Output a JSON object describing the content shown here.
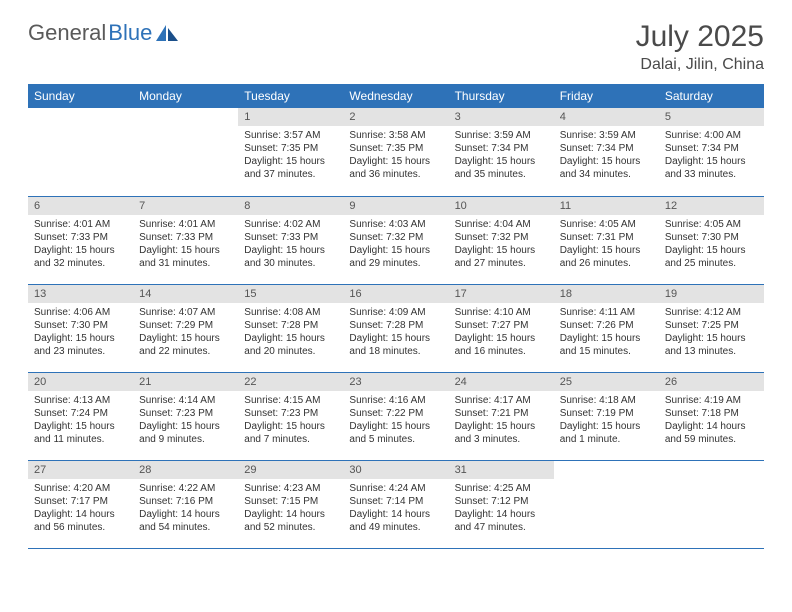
{
  "logo": {
    "text1": "General",
    "text2": "Blue"
  },
  "title": {
    "month": "July 2025",
    "location": "Dalai, Jilin, China"
  },
  "colors": {
    "header_blue": "#2e72b8",
    "daynum_bg": "#e3e3e3",
    "text": "#333333",
    "logo_gray": "#5a5a5a"
  },
  "weekdays": [
    "Sunday",
    "Monday",
    "Tuesday",
    "Wednesday",
    "Thursday",
    "Friday",
    "Saturday"
  ],
  "weeks": [
    [
      null,
      null,
      {
        "n": "1",
        "sunrise": "3:57 AM",
        "sunset": "7:35 PM",
        "daylight": "15 hours and 37 minutes."
      },
      {
        "n": "2",
        "sunrise": "3:58 AM",
        "sunset": "7:35 PM",
        "daylight": "15 hours and 36 minutes."
      },
      {
        "n": "3",
        "sunrise": "3:59 AM",
        "sunset": "7:34 PM",
        "daylight": "15 hours and 35 minutes."
      },
      {
        "n": "4",
        "sunrise": "3:59 AM",
        "sunset": "7:34 PM",
        "daylight": "15 hours and 34 minutes."
      },
      {
        "n": "5",
        "sunrise": "4:00 AM",
        "sunset": "7:34 PM",
        "daylight": "15 hours and 33 minutes."
      }
    ],
    [
      {
        "n": "6",
        "sunrise": "4:01 AM",
        "sunset": "7:33 PM",
        "daylight": "15 hours and 32 minutes."
      },
      {
        "n": "7",
        "sunrise": "4:01 AM",
        "sunset": "7:33 PM",
        "daylight": "15 hours and 31 minutes."
      },
      {
        "n": "8",
        "sunrise": "4:02 AM",
        "sunset": "7:33 PM",
        "daylight": "15 hours and 30 minutes."
      },
      {
        "n": "9",
        "sunrise": "4:03 AM",
        "sunset": "7:32 PM",
        "daylight": "15 hours and 29 minutes."
      },
      {
        "n": "10",
        "sunrise": "4:04 AM",
        "sunset": "7:32 PM",
        "daylight": "15 hours and 27 minutes."
      },
      {
        "n": "11",
        "sunrise": "4:05 AM",
        "sunset": "7:31 PM",
        "daylight": "15 hours and 26 minutes."
      },
      {
        "n": "12",
        "sunrise": "4:05 AM",
        "sunset": "7:30 PM",
        "daylight": "15 hours and 25 minutes."
      }
    ],
    [
      {
        "n": "13",
        "sunrise": "4:06 AM",
        "sunset": "7:30 PM",
        "daylight": "15 hours and 23 minutes."
      },
      {
        "n": "14",
        "sunrise": "4:07 AM",
        "sunset": "7:29 PM",
        "daylight": "15 hours and 22 minutes."
      },
      {
        "n": "15",
        "sunrise": "4:08 AM",
        "sunset": "7:28 PM",
        "daylight": "15 hours and 20 minutes."
      },
      {
        "n": "16",
        "sunrise": "4:09 AM",
        "sunset": "7:28 PM",
        "daylight": "15 hours and 18 minutes."
      },
      {
        "n": "17",
        "sunrise": "4:10 AM",
        "sunset": "7:27 PM",
        "daylight": "15 hours and 16 minutes."
      },
      {
        "n": "18",
        "sunrise": "4:11 AM",
        "sunset": "7:26 PM",
        "daylight": "15 hours and 15 minutes."
      },
      {
        "n": "19",
        "sunrise": "4:12 AM",
        "sunset": "7:25 PM",
        "daylight": "15 hours and 13 minutes."
      }
    ],
    [
      {
        "n": "20",
        "sunrise": "4:13 AM",
        "sunset": "7:24 PM",
        "daylight": "15 hours and 11 minutes."
      },
      {
        "n": "21",
        "sunrise": "4:14 AM",
        "sunset": "7:23 PM",
        "daylight": "15 hours and 9 minutes."
      },
      {
        "n": "22",
        "sunrise": "4:15 AM",
        "sunset": "7:23 PM",
        "daylight": "15 hours and 7 minutes."
      },
      {
        "n": "23",
        "sunrise": "4:16 AM",
        "sunset": "7:22 PM",
        "daylight": "15 hours and 5 minutes."
      },
      {
        "n": "24",
        "sunrise": "4:17 AM",
        "sunset": "7:21 PM",
        "daylight": "15 hours and 3 minutes."
      },
      {
        "n": "25",
        "sunrise": "4:18 AM",
        "sunset": "7:19 PM",
        "daylight": "15 hours and 1 minute."
      },
      {
        "n": "26",
        "sunrise": "4:19 AM",
        "sunset": "7:18 PM",
        "daylight": "14 hours and 59 minutes."
      }
    ],
    [
      {
        "n": "27",
        "sunrise": "4:20 AM",
        "sunset": "7:17 PM",
        "daylight": "14 hours and 56 minutes."
      },
      {
        "n": "28",
        "sunrise": "4:22 AM",
        "sunset": "7:16 PM",
        "daylight": "14 hours and 54 minutes."
      },
      {
        "n": "29",
        "sunrise": "4:23 AM",
        "sunset": "7:15 PM",
        "daylight": "14 hours and 52 minutes."
      },
      {
        "n": "30",
        "sunrise": "4:24 AM",
        "sunset": "7:14 PM",
        "daylight": "14 hours and 49 minutes."
      },
      {
        "n": "31",
        "sunrise": "4:25 AM",
        "sunset": "7:12 PM",
        "daylight": "14 hours and 47 minutes."
      },
      null,
      null
    ]
  ],
  "labels": {
    "sunrise": "Sunrise:",
    "sunset": "Sunset:",
    "daylight": "Daylight:"
  }
}
